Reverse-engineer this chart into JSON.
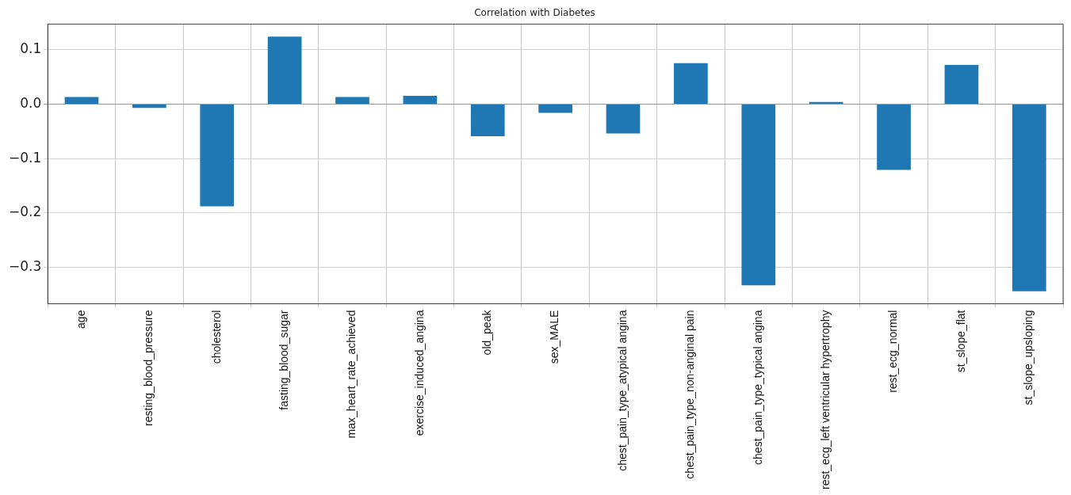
{
  "chart_data": {
    "type": "bar",
    "title": "Correlation with Diabetes",
    "categories": [
      "age",
      "resting_blood_pressure",
      "cholesterol",
      "fasting_blood_sugar",
      "max_heart_rate_achieved",
      "exercise_induced_angina",
      "old_peak",
      "sex_MALE",
      "chest_pain_type_atypical angina",
      "chest_pain_type_non-anginal pain",
      "chest_pain_type_typical angina",
      "rest_ecg_left ventricular hypertrophy",
      "rest_ecg_normal",
      "st_slope_flat",
      "st_slope_upsloping"
    ],
    "values": [
      0.013,
      -0.007,
      -0.188,
      0.124,
      0.013,
      0.015,
      -0.059,
      -0.016,
      -0.054,
      0.075,
      -0.333,
      0.004,
      -0.121,
      0.072,
      -0.344
    ],
    "color": "#1f77b4",
    "ylim": [
      -0.367,
      0.147
    ],
    "yticks": [
      {
        "value": 0.1,
        "label": "0.1"
      },
      {
        "value": 0.0,
        "label": "0.0"
      },
      {
        "value": -0.1,
        "label": "−0.1"
      },
      {
        "value": -0.2,
        "label": "−0.2"
      },
      {
        "value": -0.3,
        "label": "−0.3"
      }
    ],
    "grid": true
  }
}
